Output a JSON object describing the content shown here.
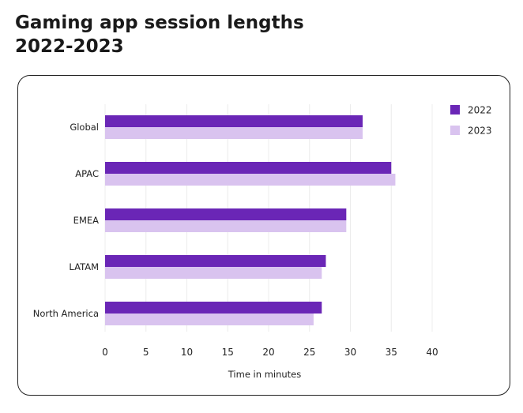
{
  "title_line1": "Gaming app session lengths",
  "title_line2": "2022-2023",
  "colors": {
    "series_2022": "#6a26b6",
    "series_2023": "#d9c3ef",
    "grid": "#ececec",
    "text": "#222222"
  },
  "chart_data": {
    "type": "bar",
    "orientation": "horizontal",
    "title": "Gaming app session lengths 2022-2023",
    "categories": [
      "Global",
      "APAC",
      "EMEA",
      "LATAM",
      "North America"
    ],
    "series": [
      {
        "name": "2022",
        "values": [
          31.5,
          35,
          29.5,
          27,
          26.5
        ]
      },
      {
        "name": "2023",
        "values": [
          31.5,
          35.5,
          29.5,
          26.5,
          25.5
        ]
      }
    ],
    "xlabel": "Time in minutes",
    "ylabel": "",
    "xlim": [
      0,
      40
    ],
    "xticks": [
      0,
      5,
      10,
      15,
      20,
      25,
      30,
      35,
      40
    ],
    "grid": true,
    "legend": "top-right"
  }
}
